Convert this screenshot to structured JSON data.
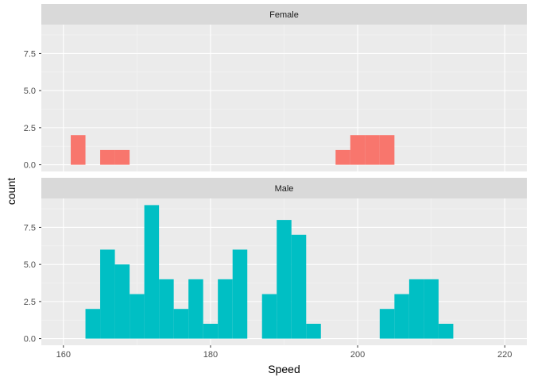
{
  "chart_data": {
    "type": "histogram",
    "xlabel": "Speed",
    "ylabel": "count",
    "xlim": [
      157,
      223
    ],
    "ylim": [
      -0.45,
      9.45
    ],
    "x_ticks": [
      160,
      180,
      200,
      220
    ],
    "x_tick_labels": [
      "160",
      "180",
      "200",
      "220"
    ],
    "y_ticks": [
      0,
      2.5,
      5,
      7.5
    ],
    "y_tick_labels": [
      "0.0 -",
      "2.5 -",
      "5.0 -",
      "7.5 -"
    ],
    "bin_width": 2,
    "grid": true,
    "facets": [
      {
        "name": "Female",
        "color": "#F8766D",
        "bins": [
          {
            "x0": 161,
            "x1": 163,
            "count": 2
          },
          {
            "x0": 165,
            "x1": 167,
            "count": 1
          },
          {
            "x0": 167,
            "x1": 169,
            "count": 1
          },
          {
            "x0": 197,
            "x1": 199,
            "count": 1
          },
          {
            "x0": 199,
            "x1": 201,
            "count": 2
          },
          {
            "x0": 201,
            "x1": 203,
            "count": 2
          },
          {
            "x0": 203,
            "x1": 205,
            "count": 2
          }
        ]
      },
      {
        "name": "Male",
        "color": "#00BFC4",
        "bins": [
          {
            "x0": 163,
            "x1": 165,
            "count": 2
          },
          {
            "x0": 165,
            "x1": 167,
            "count": 6
          },
          {
            "x0": 167,
            "x1": 169,
            "count": 5
          },
          {
            "x0": 169,
            "x1": 171,
            "count": 3
          },
          {
            "x0": 171,
            "x1": 173,
            "count": 9
          },
          {
            "x0": 173,
            "x1": 175,
            "count": 4
          },
          {
            "x0": 175,
            "x1": 177,
            "count": 2
          },
          {
            "x0": 177,
            "x1": 179,
            "count": 4
          },
          {
            "x0": 179,
            "x1": 181,
            "count": 1
          },
          {
            "x0": 181,
            "x1": 183,
            "count": 4
          },
          {
            "x0": 183,
            "x1": 185,
            "count": 6
          },
          {
            "x0": 187,
            "x1": 189,
            "count": 3
          },
          {
            "x0": 189,
            "x1": 191,
            "count": 8
          },
          {
            "x0": 191,
            "x1": 193,
            "count": 7
          },
          {
            "x0": 193,
            "x1": 195,
            "count": 1
          },
          {
            "x0": 203,
            "x1": 205,
            "count": 2
          },
          {
            "x0": 205,
            "x1": 207,
            "count": 3
          },
          {
            "x0": 207,
            "x1": 209,
            "count": 4
          },
          {
            "x0": 209,
            "x1": 211,
            "count": 4
          },
          {
            "x0": 211,
            "x1": 213,
            "count": 1
          }
        ]
      }
    ]
  }
}
